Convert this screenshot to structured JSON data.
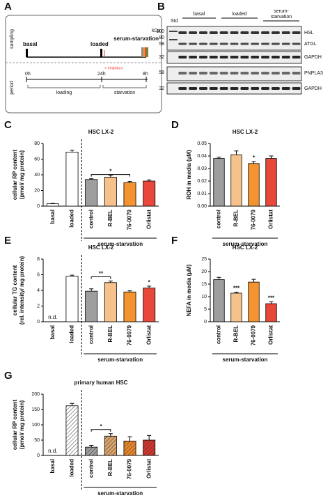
{
  "diagram": {
    "panel": "A",
    "rows": [
      "sampling",
      "period"
    ],
    "events": [
      "basal",
      "loaded",
      "serum-starvation"
    ],
    "times": [
      "0h",
      "24h",
      "8h"
    ],
    "treatment": "+ inhibitors",
    "phases": [
      "loading",
      "starvation"
    ]
  },
  "blot": {
    "panel": "B",
    "kda": "kDa",
    "std": "Std",
    "groups": [
      "basal",
      "loaded"
    ],
    "group3": [
      "serum-",
      "starvation"
    ],
    "markers": [
      100,
      80,
      58,
      32,
      58,
      32
    ],
    "proteins": [
      "HSL",
      "ATGL",
      "GAPDH",
      "PNPLA3",
      "GAPDH"
    ]
  },
  "chart_data": [
    {
      "type": "bar",
      "panel": "C",
      "title": "HSC LX-2",
      "ylabel": [
        "cellular RP content",
        "(pmol/ mg protein)"
      ],
      "categories": [
        "basal",
        "loaded",
        "control",
        "R-BEL",
        "76-0079",
        "Orlistat"
      ],
      "values": [
        3,
        69,
        34,
        37,
        30,
        32
      ],
      "errors": [
        0.5,
        2.5,
        1,
        2.5,
        1.5,
        1.5
      ],
      "colors": [
        "#ffffff",
        "#ffffff",
        "#9e9e9e",
        "#f6c28b",
        "#f39430",
        "#e8483a"
      ],
      "hatch": false,
      "ylim": [
        0,
        80
      ],
      "yticks": [
        0,
        20,
        40,
        60,
        80
      ],
      "significance": [
        {
          "label": "*",
          "categories": [
            "control",
            "76-0079"
          ]
        }
      ],
      "group": {
        "label": "serum-starvation",
        "from": "control"
      }
    },
    {
      "type": "bar",
      "panel": "D",
      "title": "HSC LX-2",
      "ylabel": [
        "ROH in media (µM)"
      ],
      "categories": [
        "control",
        "R-BEL",
        "76-0079",
        "Orlistat"
      ],
      "values": [
        0.038,
        0.041,
        0.034,
        0.038
      ],
      "errors": [
        0.001,
        0.003,
        0.0015,
        0.002
      ],
      "colors": [
        "#9e9e9e",
        "#f6c28b",
        "#f39430",
        "#e8483a"
      ],
      "hatch": false,
      "ylim": [
        0,
        0.05
      ],
      "yticks": [
        {
          "value": 0,
          "label": "0.00"
        },
        {
          "value": 0.01,
          "label": "0.01"
        },
        {
          "value": 0.02,
          "label": "0.02"
        },
        {
          "value": 0.03,
          "label": "0.03"
        },
        {
          "value": 0.04,
          "label": "0.04"
        },
        {
          "value": 0.05,
          "label": "0.05"
        }
      ],
      "significance": [
        {
          "label": "*",
          "categories": [
            "76-0079"
          ]
        }
      ],
      "group": {
        "label": "serum-starvation",
        "from": "control"
      }
    },
    {
      "type": "bar",
      "panel": "E",
      "title": "HSC LX-2",
      "ylabel": [
        "cellular TG content",
        "(rel. intensity/ mg protein)"
      ],
      "categories": [
        "basal",
        "loaded",
        "control",
        "R-BEL",
        "76-0079",
        "Orlistat"
      ],
      "values": [
        null,
        5.8,
        3.9,
        5.0,
        3.8,
        4.3
      ],
      "value_labels": [
        "n.d.",
        null,
        null,
        null,
        null,
        null
      ],
      "errors": [
        null,
        0.15,
        0.3,
        0.2,
        0.15,
        0.25
      ],
      "colors": [
        "#ffffff",
        "#ffffff",
        "#9e9e9e",
        "#f6c28b",
        "#f39430",
        "#e8483a"
      ],
      "hatch": false,
      "ylim": [
        0,
        8
      ],
      "yticks": [
        0,
        2,
        4,
        6,
        8
      ],
      "significance": [
        {
          "label": "**",
          "categories": [
            "control",
            "R-BEL"
          ]
        },
        {
          "label": "*",
          "categories": [
            "Orlistat"
          ]
        }
      ],
      "group": {
        "label": "serum-starvation",
        "from": "control"
      }
    },
    {
      "type": "bar",
      "panel": "F",
      "title": "HSC LX-2",
      "ylabel": [
        "NEFA in media (µM)"
      ],
      "categories": [
        "control",
        "R-BEL",
        "76-0079",
        "Orlistat"
      ],
      "values": [
        16.8,
        11.4,
        15.8,
        7.2
      ],
      "errors": [
        0.9,
        0.4,
        1.1,
        0.7
      ],
      "colors": [
        "#9e9e9e",
        "#f6c28b",
        "#f39430",
        "#e8483a"
      ],
      "hatch": false,
      "ylim": [
        0,
        25
      ],
      "yticks": [
        0,
        5,
        10,
        15,
        20,
        25
      ],
      "significance": [
        {
          "label": "***",
          "categories": [
            "R-BEL"
          ]
        },
        {
          "label": "***",
          "categories": [
            "Orlistat"
          ]
        }
      ],
      "group": {
        "label": "serum-starvation",
        "from": "control"
      }
    },
    {
      "type": "bar",
      "panel": "G",
      "title": "primary human HSC",
      "ylabel": [
        "cellular RP content",
        "(pmol/ mg protein)"
      ],
      "categories": [
        "basal",
        "loaded",
        "control",
        "R-BEL",
        "76-0079",
        "Orlistat"
      ],
      "values": [
        null,
        162,
        27,
        63,
        47,
        50
      ],
      "value_labels": [
        "n.d.",
        null,
        null,
        null,
        null,
        null
      ],
      "errors": [
        null,
        8,
        6,
        8,
        14,
        15
      ],
      "colors": [
        "#ffffff",
        "#ffffff",
        "#9e9e9e",
        "#d9a36a",
        "#e8872a",
        "#d0362e"
      ],
      "hatch": true,
      "ylim": [
        0,
        200
      ],
      "yticks": [
        0,
        50,
        100,
        150,
        200
      ],
      "significance": [
        {
          "label": "*",
          "categories": [
            "control",
            "R-BEL"
          ]
        }
      ],
      "group": {
        "label": "serum-starvation",
        "from": "control"
      }
    }
  ]
}
